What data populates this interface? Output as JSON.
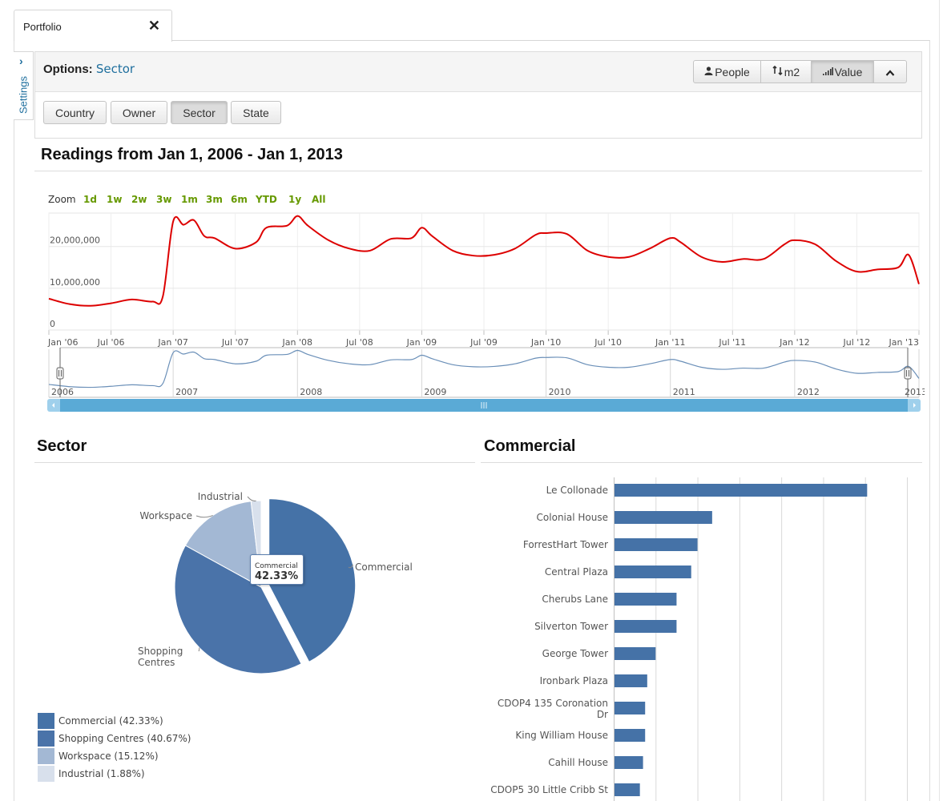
{
  "tab": {
    "title": "Portfolio",
    "close_icon": "✕"
  },
  "settings": {
    "label": "Settings",
    "chevron": "›"
  },
  "options": {
    "label": "Options:",
    "selected": "Sector",
    "metrics": [
      {
        "icon": "person-icon",
        "glyph": "👤",
        "label": "People"
      },
      {
        "icon": "resize-icon",
        "glyph": "⇅",
        "label": "m2"
      },
      {
        "icon": "bar-signal-icon",
        "glyph": "▂▄▆",
        "label": "Value",
        "active": true
      }
    ],
    "collapse_glyph": "⌃",
    "segments": [
      "Country",
      "Owner",
      "Sector",
      "State"
    ],
    "active_segment": "Sector"
  },
  "readings": {
    "title": "Readings from Jan 1, 2006 - Jan 1, 2013",
    "zoom_label": "Zoom",
    "zoom_options": [
      "1d",
      "1w",
      "2w",
      "3w",
      "1m",
      "3m",
      "6m",
      "YTD",
      "1y",
      "All"
    ],
    "accent": "#669900",
    "line_color": "#dd0000",
    "nav_color": "#6a8fb8",
    "scrollbar_color": "#5aaad6"
  },
  "chart_data": [
    {
      "type": "line",
      "x_axis": "time",
      "x_range": [
        "2006-01-01",
        "2013-01-01"
      ],
      "y_ticks": [
        "0",
        "10,000,000",
        "20,000,000"
      ],
      "ylim": [
        0,
        28000000
      ],
      "x_tick_labels": [
        "Jan '06",
        "Jul '06",
        "Jan '07",
        "Jul '07",
        "Jan '08",
        "Jul '08",
        "Jan '09",
        "Jul '09",
        "Jan '10",
        "Jul '10",
        "Jan '11",
        "Jul '11",
        "Jan '12",
        "Jul '12",
        "Jan '13"
      ],
      "navigator_year_labels": [
        "2006",
        "2007",
        "2008",
        "2009",
        "2010",
        "2011",
        "2012",
        "2013"
      ],
      "x": [
        "2006-01",
        "2006-03",
        "2006-05",
        "2006-07",
        "2006-09",
        "2006-11",
        "2006-12",
        "2007-01",
        "2007-02",
        "2007-03",
        "2007-04",
        "2007-05",
        "2007-07",
        "2007-09",
        "2007-10",
        "2007-12",
        "2008-01",
        "2008-02",
        "2008-04",
        "2008-06",
        "2008-08",
        "2008-10",
        "2008-12",
        "2009-01",
        "2009-02",
        "2009-04",
        "2009-06",
        "2009-08",
        "2009-10",
        "2009-12",
        "2010-01",
        "2010-03",
        "2010-05",
        "2010-07",
        "2010-09",
        "2010-11",
        "2011-01",
        "2011-02",
        "2011-04",
        "2011-06",
        "2011-08",
        "2011-10",
        "2011-12",
        "2012-01",
        "2012-03",
        "2012-05",
        "2012-07",
        "2012-09",
        "2012-11",
        "2012-12",
        "2013-01"
      ],
      "values": [
        7500000,
        6200000,
        5800000,
        6400000,
        7300000,
        6800000,
        8000000,
        26000000,
        25200000,
        26300000,
        22500000,
        22000000,
        19500000,
        21000000,
        24500000,
        25000000,
        27300000,
        25000000,
        21500000,
        19500000,
        19000000,
        21800000,
        22000000,
        24500000,
        22500000,
        19000000,
        17800000,
        18000000,
        19500000,
        22800000,
        23200000,
        23000000,
        19000000,
        17500000,
        17500000,
        19500000,
        22000000,
        21000000,
        17500000,
        16300000,
        17000000,
        17000000,
        20500000,
        21500000,
        20500000,
        16500000,
        14000000,
        14500000,
        15000000,
        18000000,
        11000000
      ]
    },
    {
      "type": "pie",
      "title": "Sector",
      "labels": [
        "Commercial",
        "Shopping Centres",
        "Workspace",
        "Industrial"
      ],
      "values": [
        42.33,
        40.67,
        15.12,
        1.88
      ],
      "colors": [
        "#4572a7",
        "#4a73a9",
        "#a3b8d4",
        "#d8e0ec"
      ],
      "pie_labels": [
        "Commercial",
        "Shopping\nCentres",
        "Workspace",
        "Industrial"
      ],
      "tooltip": {
        "label": "Commercial",
        "value": "42.33%"
      },
      "legend": [
        "Commercial  (42.33%)",
        "Shopping Centres  (40.67%)",
        "Workspace  (15.12%)",
        "Industrial  (1.88%)"
      ]
    },
    {
      "type": "bar",
      "orientation": "horizontal",
      "title": "Commercial",
      "categories": [
        "Le Collonade",
        "Colonial House",
        "ForrestHart Tower",
        "Central Plaza",
        "Cherubs Lane",
        "Silverton Tower",
        "George Tower",
        "Ironbark Plaza",
        "CDOP4 135 Coronation Dr",
        "King William House",
        "Cahill House",
        "CDOP5 30 Little Cribb St"
      ],
      "category_lines": [
        [
          "Le Collonade"
        ],
        [
          "Colonial House"
        ],
        [
          "ForrestHart Tower"
        ],
        [
          "Central Plaza"
        ],
        [
          "Cherubs Lane"
        ],
        [
          "Silverton Tower"
        ],
        [
          "George Tower"
        ],
        [
          "Ironbark Plaza"
        ],
        [
          "CDOP4 135 Coronation",
          "Dr"
        ],
        [
          "King William House"
        ],
        [
          "Cahill House"
        ],
        [
          "CDOP5 30 Little Cribb St"
        ]
      ],
      "values": [
        12.1,
        4.7,
        4.0,
        3.7,
        3.0,
        3.0,
        2.0,
        1.6,
        1.5,
        1.5,
        1.4,
        1.25
      ],
      "xlim": [
        0,
        14
      ],
      "grid_step": 2,
      "color": "#4572a7"
    }
  ]
}
